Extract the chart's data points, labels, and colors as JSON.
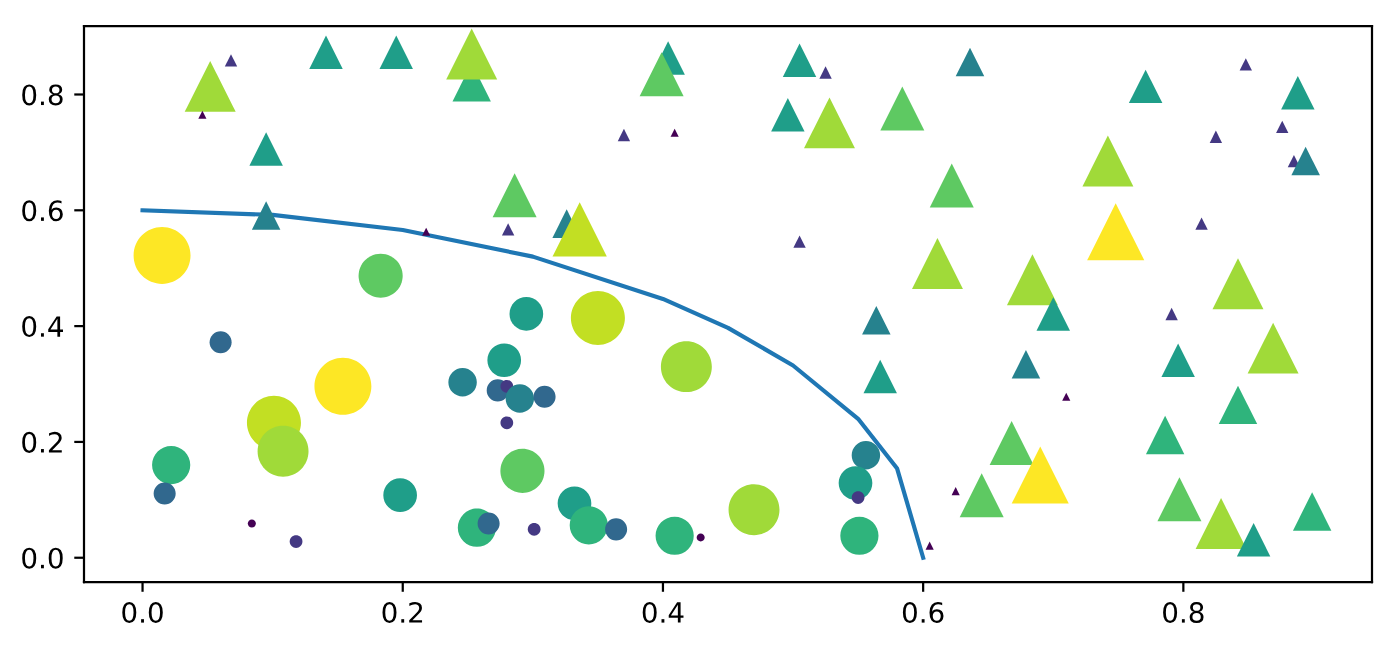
{
  "chart_data": {
    "type": "scatter",
    "xlim": [
      -0.045,
      0.945
    ],
    "ylim": [
      -0.042,
      0.918
    ],
    "xticks": [
      {
        "value": 0,
        "label": "0.0"
      },
      0.2,
      0.4,
      0.6,
      0.8
    ],
    "yticks": [
      {
        "value": 0,
        "label": "0.0"
      },
      0.2,
      0.4,
      0.6,
      0.8
    ],
    "series": [
      {
        "type": "scatter",
        "marker": "circle",
        "x": [
          0.015,
          0.183,
          0.295,
          0.35,
          0.418,
          0.06,
          0.246,
          0.273,
          0.28,
          0.29,
          0.278,
          0.309,
          0.154,
          0.101,
          0.108,
          0.28,
          0.022,
          0.017,
          0.292,
          0.198,
          0.084,
          0.118,
          0.257,
          0.266,
          0.301,
          0.332,
          0.343,
          0.364,
          0.409,
          0.429,
          0.47,
          0.556,
          0.548,
          0.55,
          0.551
        ],
        "values": [
          0.522,
          0.487,
          0.421,
          0.414,
          0.33,
          0.372,
          0.303,
          0.289,
          0.296,
          0.275,
          0.341,
          0.278,
          0.296,
          0.233,
          0.184,
          0.233,
          0.16,
          0.111,
          0.15,
          0.108,
          0.059,
          0.028,
          0.052,
          0.059,
          0.049,
          0.094,
          0.056,
          0.049,
          0.038,
          0.035,
          0.083,
          0.177,
          0.129,
          0.104,
          0.038
        ],
        "sizes": [
          1.0,
          0.6,
          0.35,
          0.9,
          0.8,
          0.15,
          0.25,
          0.15,
          0.05,
          0.25,
          0.35,
          0.15,
          1.0,
          0.9,
          0.8,
          0.05,
          0.45,
          0.15,
          0.6,
          0.35,
          0.02,
          0.05,
          0.45,
          0.15,
          0.05,
          0.35,
          0.45,
          0.15,
          0.45,
          0.02,
          0.8,
          0.25,
          0.35,
          0.05,
          0.45
        ],
        "colors": [
          "#fde725",
          "#5ec962",
          "#1f9e89",
          "#c2df23",
          "#a0da39",
          "#31688e",
          "#26828e",
          "#31688e",
          "#443983",
          "#26828e",
          "#1f9e89",
          "#31688e",
          "#fde725",
          "#c2df23",
          "#a0da39",
          "#443983",
          "#2fb47c",
          "#31688e",
          "#5ec962",
          "#1f9e89",
          "#440154",
          "#443983",
          "#2fb47c",
          "#31688e",
          "#443983",
          "#1f9e89",
          "#2fb47c",
          "#31688e",
          "#2fb47c",
          "#440154",
          "#a0da39",
          "#26828e",
          "#1f9e89",
          "#443983",
          "#2fb47c"
        ]
      },
      {
        "type": "scatter",
        "marker": "triangle",
        "x": [
          0.052,
          0.068,
          0.046,
          0.141,
          0.195,
          0.253,
          0.253,
          0.095,
          0.095,
          0.286,
          0.218,
          0.281,
          0.326,
          0.336,
          0.404,
          0.399,
          0.505,
          0.525,
          0.37,
          0.409,
          0.496,
          0.528,
          0.584,
          0.622,
          0.505,
          0.611,
          0.564,
          0.567,
          0.636,
          0.771,
          0.848,
          0.888,
          0.742,
          0.825,
          0.876,
          0.885,
          0.894,
          0.748,
          0.814,
          0.684,
          0.7,
          0.791,
          0.842,
          0.869,
          0.679,
          0.796,
          0.71,
          0.842,
          0.668,
          0.786,
          0.69,
          0.645,
          0.797,
          0.829,
          0.854,
          0.899,
          0.625,
          0.605
        ],
        "values": [
          0.814,
          0.859,
          0.765,
          0.873,
          0.873,
          0.821,
          0.87,
          0.706,
          0.591,
          0.626,
          0.563,
          0.567,
          0.577,
          0.567,
          0.863,
          0.835,
          0.859,
          0.838,
          0.73,
          0.734,
          0.765,
          0.751,
          0.776,
          0.643,
          0.546,
          0.508,
          0.41,
          0.313,
          0.856,
          0.814,
          0.852,
          0.803,
          0.685,
          0.727,
          0.744,
          0.685,
          0.685,
          0.563,
          0.577,
          0.48,
          0.421,
          0.421,
          0.473,
          0.362,
          0.334,
          0.341,
          0.278,
          0.264,
          0.198,
          0.212,
          0.143,
          0.108,
          0.101,
          0.059,
          0.031,
          0.08,
          0.115,
          0.021
        ],
        "sizes": [
          0.51,
          0.03,
          0.013,
          0.22,
          0.22,
          0.29,
          0.51,
          0.22,
          0.16,
          0.38,
          0.013,
          0.03,
          0.16,
          0.58,
          0.22,
          0.38,
          0.22,
          0.03,
          0.03,
          0.013,
          0.22,
          0.51,
          0.38,
          0.38,
          0.03,
          0.51,
          0.16,
          0.22,
          0.16,
          0.22,
          0.03,
          0.22,
          0.51,
          0.03,
          0.03,
          0.03,
          0.16,
          0.64,
          0.03,
          0.51,
          0.22,
          0.03,
          0.51,
          0.51,
          0.16,
          0.22,
          0.013,
          0.29,
          0.38,
          0.29,
          0.64,
          0.38,
          0.38,
          0.51,
          0.22,
          0.29,
          0.013,
          0.013
        ],
        "colors": [
          "#a0da39",
          "#443983",
          "#440154",
          "#1f9e89",
          "#1f9e89",
          "#2fb47c",
          "#a0da39",
          "#1f9e89",
          "#26828e",
          "#5ec962",
          "#440154",
          "#443983",
          "#26828e",
          "#c2df23",
          "#1f9e89",
          "#5ec962",
          "#1f9e89",
          "#443983",
          "#443983",
          "#440154",
          "#1f9e89",
          "#a0da39",
          "#5ec962",
          "#5ec962",
          "#443983",
          "#a0da39",
          "#26828e",
          "#1f9e89",
          "#26828e",
          "#1f9e89",
          "#443983",
          "#1f9e89",
          "#a0da39",
          "#443983",
          "#443983",
          "#443983",
          "#26828e",
          "#fde725",
          "#443983",
          "#a0da39",
          "#1f9e89",
          "#443983",
          "#a0da39",
          "#a0da39",
          "#26828e",
          "#1f9e89",
          "#440154",
          "#2fb47c",
          "#5ec962",
          "#2fb47c",
          "#fde725",
          "#5ec962",
          "#5ec962",
          "#a0da39",
          "#1f9e89",
          "#2fb47c",
          "#440154",
          "#440154"
        ]
      },
      {
        "type": "line",
        "color": "#1f77b4",
        "x": [
          0.0,
          0.1,
          0.2,
          0.3,
          0.4,
          0.45,
          0.5,
          0.55,
          0.58,
          0.6
        ],
        "values": [
          0.6,
          0.592,
          0.566,
          0.52,
          0.447,
          0.397,
          0.332,
          0.24,
          0.154,
          0.0
        ]
      }
    ]
  }
}
